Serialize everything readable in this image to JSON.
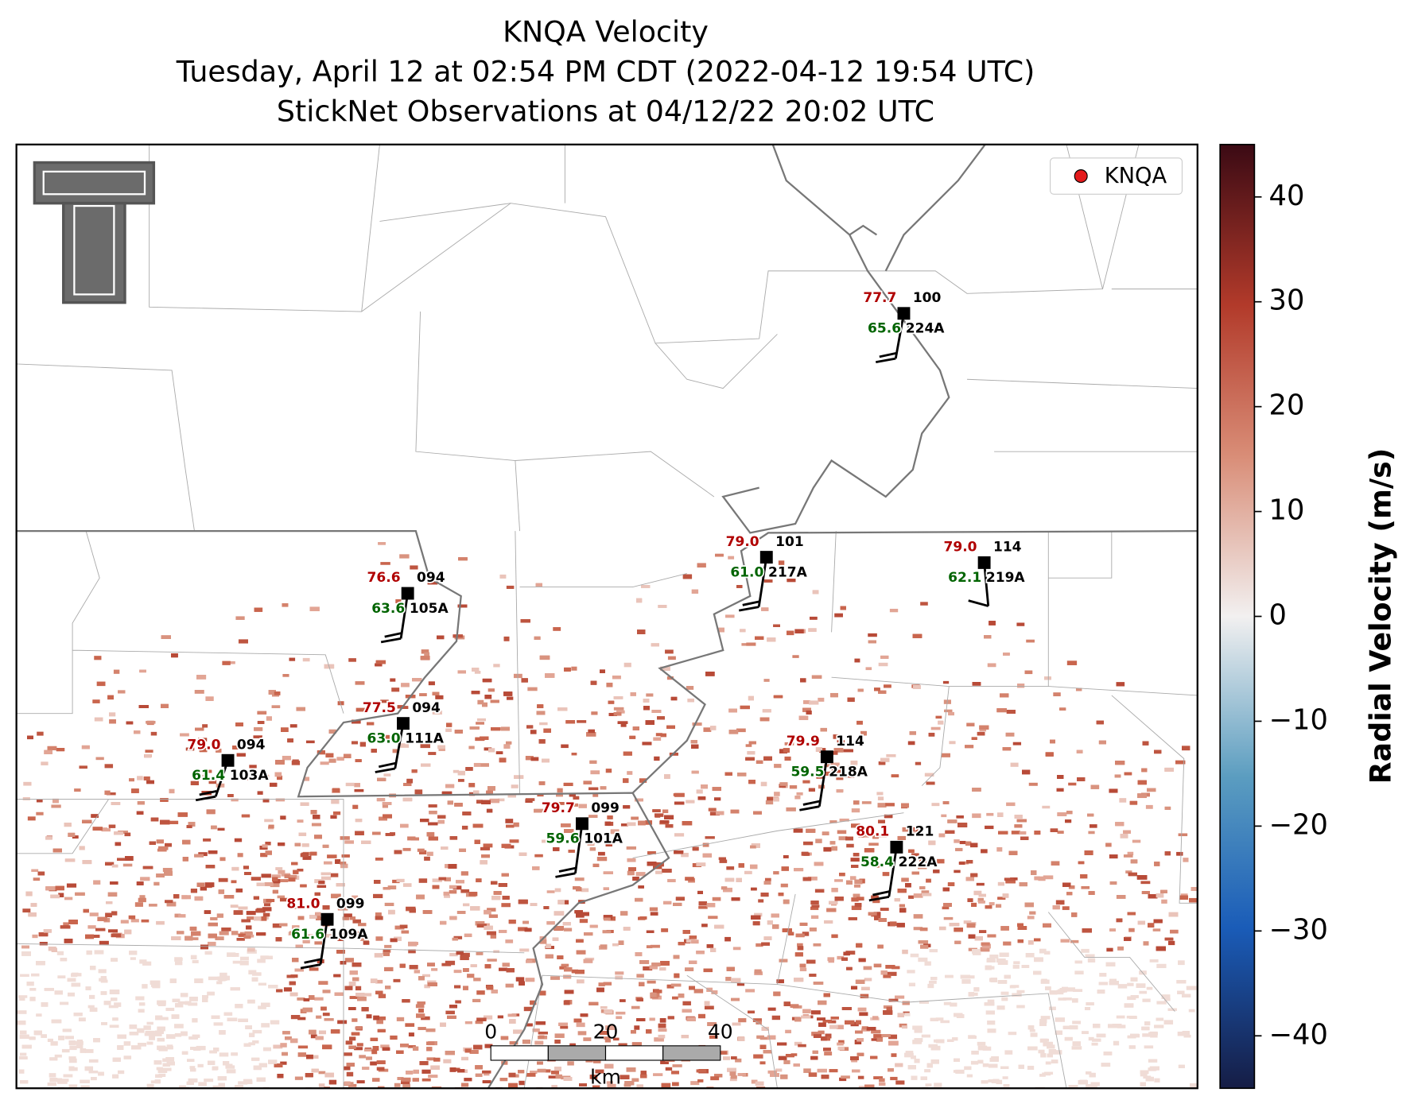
{
  "title_lines": [
    "KNQA Velocity",
    "Tuesday, April 12 at 02:54 PM CDT (2022-04-12 19:54 UTC)",
    "StickNet Observations at 04/12/22 20:02 UTC"
  ],
  "legend": {
    "label": "KNQA",
    "color": "#e41a1c"
  },
  "scale_bar": {
    "ticks": [
      0,
      20,
      40
    ],
    "unit": "km"
  },
  "colorbar": {
    "label": "Radial Velocity (m/s)",
    "lim": [
      -45,
      45
    ],
    "ticks": [
      {
        "value": -40,
        "label": "−40"
      },
      {
        "value": -30,
        "label": "−30"
      },
      {
        "value": -20,
        "label": "−20"
      },
      {
        "value": -10,
        "label": "−10"
      },
      0,
      10,
      20,
      30,
      40
    ]
  },
  "stations": [
    {
      "id": "224A",
      "temperature": "77.7",
      "dewpoint": "65.6",
      "pressure": "100"
    },
    {
      "id": "217A",
      "temperature": "79.0",
      "dewpoint": "61.0",
      "pressure": "101"
    },
    {
      "id": "219A",
      "temperature": "79.0",
      "dewpoint": "62.1",
      "pressure": "114"
    },
    {
      "id": "105A",
      "temperature": "76.6",
      "dewpoint": "63.6",
      "pressure": "094"
    },
    {
      "id": "111A",
      "temperature": "77.5",
      "dewpoint": "63.0",
      "pressure": "094"
    },
    {
      "id": "103A",
      "temperature": "79.0",
      "dewpoint": "61.4",
      "pressure": "094"
    },
    {
      "id": "218A",
      "temperature": "79.9",
      "dewpoint": "59.5",
      "pressure": "114"
    },
    {
      "id": "101A",
      "temperature": "79.7",
      "dewpoint": "59.6",
      "pressure": "099"
    },
    {
      "id": "222A",
      "temperature": "80.1",
      "dewpoint": "58.4",
      "pressure": "121"
    },
    {
      "id": "109A",
      "temperature": "81.0",
      "dewpoint": "61.6",
      "pressure": "099"
    }
  ]
}
